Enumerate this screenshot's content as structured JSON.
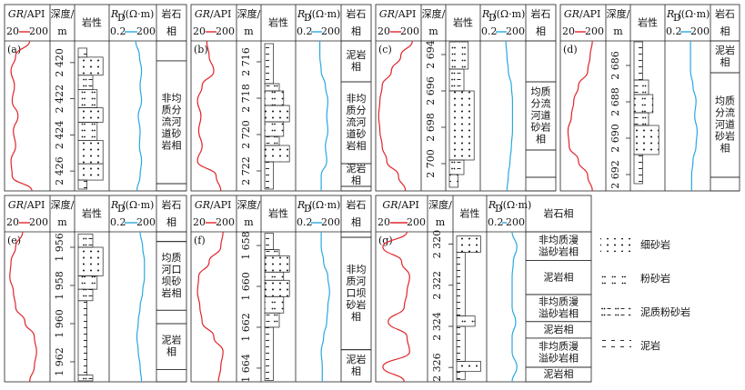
{
  "headers": {
    "gr_name": "GR",
    "gr_unit": "/API",
    "gr_lim": [
      20,
      200
    ],
    "depth_name": "深度/",
    "depth_unit": "m",
    "lith": "岩性",
    "rd_name": "R",
    "rd_sub": "D",
    "rd_unit": "/(Ω·m)",
    "rd_lim": [
      0.2,
      200
    ],
    "facies_1": "岩石",
    "facies_2": "相",
    "facies": "岩石相",
    "gr_color": "#e0262b",
    "rd_color": "#29a8e0"
  },
  "lithology_legend": [
    "细砂岩",
    "粉砂岩",
    "泥质粉砂岩",
    "泥岩"
  ],
  "panels": [
    {
      "label": "(a)",
      "depth_lim": [
        2418.8,
        2427.1
      ],
      "depth_ticks": [
        {
          "value": 2420,
          "label": "2 420"
        },
        {
          "value": 2422,
          "label": "2 422"
        },
        {
          "value": 2424,
          "label": "2 424"
        },
        {
          "value": 2426,
          "label": "2 426"
        }
      ],
      "lithology": [
        {
          "top": 2419.2,
          "bottom": 2419.7,
          "type": "泥岩"
        },
        {
          "top": 2419.7,
          "bottom": 2420.7,
          "type": "细砂岩"
        },
        {
          "top": 2420.7,
          "bottom": 2421.5,
          "type": "泥质粉砂岩"
        },
        {
          "top": 2421.5,
          "bottom": 2422.5,
          "type": "粉砂岩"
        },
        {
          "top": 2422.5,
          "bottom": 2423.3,
          "type": "细砂岩"
        },
        {
          "top": 2423.3,
          "bottom": 2424.3,
          "type": "粉砂岩"
        },
        {
          "top": 2424.3,
          "bottom": 2425.6,
          "type": "细砂岩"
        },
        {
          "top": 2425.6,
          "bottom": 2426.5,
          "type": "细砂岩"
        },
        {
          "top": 2426.5,
          "bottom": 2427.0,
          "type": "泥岩"
        }
      ],
      "facies": [
        {
          "top": 2418.8,
          "bottom": 2419.9
        },
        {
          "top": 2419.9,
          "bottom": 2426.7,
          "label": "非均质分流河道砂岩相"
        },
        {
          "top": 2426.7,
          "bottom": 2427.1
        }
      ],
      "depths": [
        2418.8,
        2419.63,
        2420.46,
        2421.29,
        2422.12,
        2422.95,
        2423.78,
        2424.61,
        2425.44,
        2426.27,
        2427.1
      ],
      "gr": [
        120,
        60,
        40,
        55,
        45,
        70,
        50,
        60,
        40,
        45,
        130
      ],
      "rd": [
        10,
        18,
        25,
        20,
        25,
        15,
        20,
        18,
        25,
        20,
        12
      ]
    },
    {
      "label": "(b)",
      "depth_lim": [
        2714.85,
        2723.1
      ],
      "depth_ticks": [
        {
          "value": 2716,
          "label": "2 716"
        },
        {
          "value": 2718,
          "label": "2 718"
        },
        {
          "value": 2720,
          "label": "2 720"
        },
        {
          "value": 2722,
          "label": "2 722"
        }
      ],
      "lithology": [
        {
          "top": 2715.0,
          "bottom": 2717.2,
          "type": "泥岩"
        },
        {
          "top": 2717.2,
          "bottom": 2717.6,
          "type": "泥质粉砂岩"
        },
        {
          "top": 2717.6,
          "bottom": 2718.4,
          "type": "粉砂岩"
        },
        {
          "top": 2718.4,
          "bottom": 2719.3,
          "type": "细砂岩"
        },
        {
          "top": 2719.3,
          "bottom": 2720.1,
          "type": "粉砂岩"
        },
        {
          "top": 2720.1,
          "bottom": 2720.6,
          "type": "泥质粉砂岩"
        },
        {
          "top": 2720.6,
          "bottom": 2721.5,
          "type": "细砂岩"
        },
        {
          "top": 2721.5,
          "bottom": 2723.0,
          "type": "泥岩"
        }
      ],
      "facies": [
        {
          "top": 2714.85,
          "bottom": 2717.1,
          "label": "泥岩相"
        },
        {
          "top": 2717.1,
          "bottom": 2721.6,
          "label": "非均质分流河道砂岩相"
        },
        {
          "top": 2721.6,
          "bottom": 2722.85,
          "label": "泥岩相"
        },
        {
          "top": 2722.85,
          "bottom": 2723.1
        }
      ],
      "depths": [
        2714.85,
        2715.68,
        2716.5,
        2717.33,
        2718.15,
        2718.98,
        2719.8,
        2720.63,
        2721.45,
        2722.28,
        2723.1
      ],
      "gr": [
        80,
        90,
        110,
        60,
        40,
        55,
        45,
        60,
        40,
        120,
        140
      ],
      "rd": [
        8,
        8,
        10,
        20,
        30,
        25,
        30,
        20,
        25,
        10,
        10
      ]
    },
    {
      "label": "(c)",
      "depth_lim": [
        2693.25,
        2701.5
      ],
      "depth_ticks": [
        {
          "value": 2694,
          "label": "2 694"
        },
        {
          "value": 2696,
          "label": "2 696"
        },
        {
          "value": 2698,
          "label": "2 698"
        },
        {
          "value": 2700,
          "label": "2 700"
        }
      ],
      "lithology": [
        {
          "top": 2693.3,
          "bottom": 2694.8,
          "type": "粉砂岩"
        },
        {
          "top": 2694.8,
          "bottom": 2696.0,
          "type": "泥质粉砂岩"
        },
        {
          "top": 2696.0,
          "bottom": 2699.8,
          "type": "细砂岩"
        },
        {
          "top": 2699.8,
          "bottom": 2700.6,
          "type": "泥质粉砂岩"
        },
        {
          "top": 2700.6,
          "bottom": 2701.3,
          "type": "泥岩"
        }
      ],
      "facies": [
        {
          "top": 2693.25,
          "bottom": 2695.5
        },
        {
          "top": 2695.5,
          "bottom": 2699.25,
          "label": "均质分流河道砂岩相"
        },
        {
          "top": 2699.25,
          "bottom": 2700.75
        },
        {
          "top": 2700.75,
          "bottom": 2701.5
        }
      ],
      "depths": [
        2693.25,
        2694.08,
        2694.9,
        2695.73,
        2696.55,
        2697.38,
        2698.2,
        2699.03,
        2699.85,
        2700.68,
        2701.5
      ],
      "gr": [
        170,
        120,
        80,
        40,
        30,
        25,
        30,
        40,
        60,
        110,
        140
      ],
      "rd": [
        10,
        12,
        15,
        25,
        30,
        30,
        30,
        25,
        20,
        15,
        12
      ]
    },
    {
      "label": "(d)",
      "depth_lim": [
        2684.65,
        2692.9
      ],
      "depth_ticks": [
        {
          "value": 2686,
          "label": "2 686"
        },
        {
          "value": 2688,
          "label": "2 688"
        },
        {
          "value": 2690,
          "label": "2 690"
        },
        {
          "value": 2692,
          "label": "2 692"
        }
      ],
      "lithology": [
        {
          "top": 2684.7,
          "bottom": 2686.8,
          "type": "泥岩"
        },
        {
          "top": 2686.8,
          "bottom": 2687.6,
          "type": "泥质粉砂岩"
        },
        {
          "top": 2687.6,
          "bottom": 2688.6,
          "type": "粉砂岩"
        },
        {
          "top": 2688.6,
          "bottom": 2689.3,
          "type": "泥质粉砂岩"
        },
        {
          "top": 2689.3,
          "bottom": 2690.9,
          "type": "细砂岩"
        },
        {
          "top": 2690.9,
          "bottom": 2692.5,
          "type": "泥岩"
        }
      ],
      "facies": [
        {
          "top": 2684.65,
          "bottom": 2686.4,
          "label": "泥岩相"
        },
        {
          "top": 2686.4,
          "bottom": 2692.15,
          "label": "均质分流河道砂岩相"
        },
        {
          "top": 2692.15,
          "bottom": 2692.9
        }
      ],
      "depths": [
        2684.65,
        2685.48,
        2686.3,
        2687.13,
        2687.95,
        2688.78,
        2689.6,
        2690.43,
        2691.25,
        2692.08,
        2692.9
      ],
      "gr": [
        150,
        140,
        130,
        90,
        70,
        60,
        45,
        50,
        90,
        130,
        150
      ],
      "rd": [
        10,
        10,
        10,
        15,
        25,
        20,
        30,
        25,
        15,
        12,
        12
      ]
    },
    {
      "label": "(e)",
      "depth_lim": [
        1955.19,
        1963.05
      ],
      "depth_ticks": [
        {
          "value": 1956,
          "label": "1 956"
        },
        {
          "value": 1958,
          "label": "1 958"
        },
        {
          "value": 1960,
          "label": "1 960"
        },
        {
          "value": 1962,
          "label": "1 962"
        }
      ],
      "lithology": [
        {
          "top": 1955.3,
          "bottom": 1956.0,
          "type": "泥质粉砂岩"
        },
        {
          "top": 1956.0,
          "bottom": 1957.5,
          "type": "细砂岩"
        },
        {
          "top": 1957.5,
          "bottom": 1958.2,
          "type": "粉砂岩"
        },
        {
          "top": 1958.2,
          "bottom": 1958.8,
          "type": "泥质粉砂岩"
        },
        {
          "top": 1958.8,
          "bottom": 1962.7,
          "type": "泥岩"
        },
        {
          "top": 1962.7,
          "bottom": 1963.0,
          "type": "泥质粉砂岩"
        }
      ],
      "facies": [
        {
          "top": 1955.19,
          "bottom": 1955.7
        },
        {
          "top": 1955.7,
          "bottom": 1959.3,
          "label": "均质河口坝砂岩相"
        },
        {
          "top": 1959.3,
          "bottom": 1960.0
        },
        {
          "top": 1960.0,
          "bottom": 1962.4,
          "label": "泥岩相"
        },
        {
          "top": 1962.4,
          "bottom": 1963.05
        }
      ],
      "depths": [
        1955.19,
        1955.98,
        1956.76,
        1957.55,
        1958.33,
        1959.12,
        1959.91,
        1960.69,
        1961.48,
        1962.26,
        1963.05
      ],
      "gr": [
        90,
        60,
        40,
        35,
        50,
        60,
        100,
        140,
        150,
        140,
        120
      ],
      "rd": [
        20,
        30,
        40,
        40,
        30,
        20,
        15,
        12,
        15,
        20,
        25
      ]
    },
    {
      "label": "(f)",
      "depth_lim": [
        1657.33,
        1664.67
      ],
      "depth_ticks": [
        {
          "value": 1658,
          "label": "1 658"
        },
        {
          "value": 1660,
          "label": "1 660"
        },
        {
          "value": 1662,
          "label": "1 662"
        },
        {
          "value": 1664,
          "label": "1 664"
        }
      ],
      "lithology": [
        {
          "top": 1657.4,
          "bottom": 1658.2,
          "type": "泥岩"
        },
        {
          "top": 1658.2,
          "bottom": 1658.5,
          "type": "泥质粉砂岩"
        },
        {
          "top": 1658.5,
          "bottom": 1659.3,
          "type": "细砂岩"
        },
        {
          "top": 1659.3,
          "bottom": 1659.7,
          "type": "粉砂岩"
        },
        {
          "top": 1659.7,
          "bottom": 1660.5,
          "type": "细砂岩"
        },
        {
          "top": 1660.5,
          "bottom": 1661.3,
          "type": "粉砂岩"
        },
        {
          "top": 1661.3,
          "bottom": 1662.0,
          "type": "泥质粉砂岩"
        },
        {
          "top": 1662.0,
          "bottom": 1664.6,
          "type": "泥岩"
        }
      ],
      "facies": [
        {
          "top": 1657.33,
          "bottom": 1657.6
        },
        {
          "top": 1657.6,
          "bottom": 1663.1,
          "label": "非均质河口坝砂岩相"
        },
        {
          "top": 1663.1,
          "bottom": 1664.67,
          "label": "泥岩相"
        }
      ],
      "depths": [
        1657.33,
        1658.06,
        1658.8,
        1659.53,
        1660.27,
        1661.0,
        1661.73,
        1662.47,
        1663.2,
        1663.94,
        1664.67
      ],
      "gr": [
        150,
        140,
        90,
        45,
        40,
        50,
        60,
        110,
        150,
        140,
        130
      ],
      "rd": [
        10,
        10,
        15,
        30,
        40,
        30,
        25,
        15,
        10,
        12,
        12
      ]
    },
    {
      "label": "(g)",
      "depth_lim": [
        2319.4,
        2326.7
      ],
      "depth_ticks": [
        {
          "value": 2320,
          "label": "2 320"
        },
        {
          "value": 2322,
          "label": "2 322"
        },
        {
          "value": 2324,
          "label": "2 324"
        },
        {
          "value": 2326,
          "label": "2 326"
        }
      ],
      "lithology": [
        {
          "top": 2319.6,
          "bottom": 2320.4,
          "type": "细砂岩"
        },
        {
          "top": 2320.4,
          "bottom": 2323.5,
          "type": "泥岩"
        },
        {
          "top": 2323.5,
          "bottom": 2324.0,
          "type": "粉砂岩"
        },
        {
          "top": 2324.0,
          "bottom": 2325.7,
          "type": "泥岩"
        },
        {
          "top": 2325.7,
          "bottom": 2326.2,
          "type": "细砂岩"
        },
        {
          "top": 2326.2,
          "bottom": 2326.6,
          "type": "泥岩"
        }
      ],
      "facies": [
        {
          "top": 2319.4,
          "bottom": 2320.8,
          "label": "非均质漫溢砂岩相"
        },
        {
          "top": 2320.8,
          "bottom": 2322.45,
          "label": "泥岩相"
        },
        {
          "top": 2322.45,
          "bottom": 2323.77,
          "label": "非均质漫溢砂岩相"
        },
        {
          "top": 2323.77,
          "bottom": 2324.57,
          "label": "泥岩相"
        },
        {
          "top": 2324.57,
          "bottom": 2325.99,
          "label": "非均质漫溢砂岩相"
        },
        {
          "top": 2325.99,
          "bottom": 2326.7,
          "label": "泥岩相"
        }
      ],
      "depths": [
        2319.4,
        2320.13,
        2320.86,
        2321.59,
        2322.32,
        2323.05,
        2323.78,
        2324.51,
        2325.24,
        2325.97,
        2326.7
      ],
      "gr": [
        130,
        40,
        110,
        140,
        130,
        120,
        60,
        130,
        140,
        40,
        120
      ],
      "rd": [
        20,
        50,
        25,
        20,
        20,
        20,
        40,
        20,
        20,
        50,
        20
      ]
    }
  ]
}
